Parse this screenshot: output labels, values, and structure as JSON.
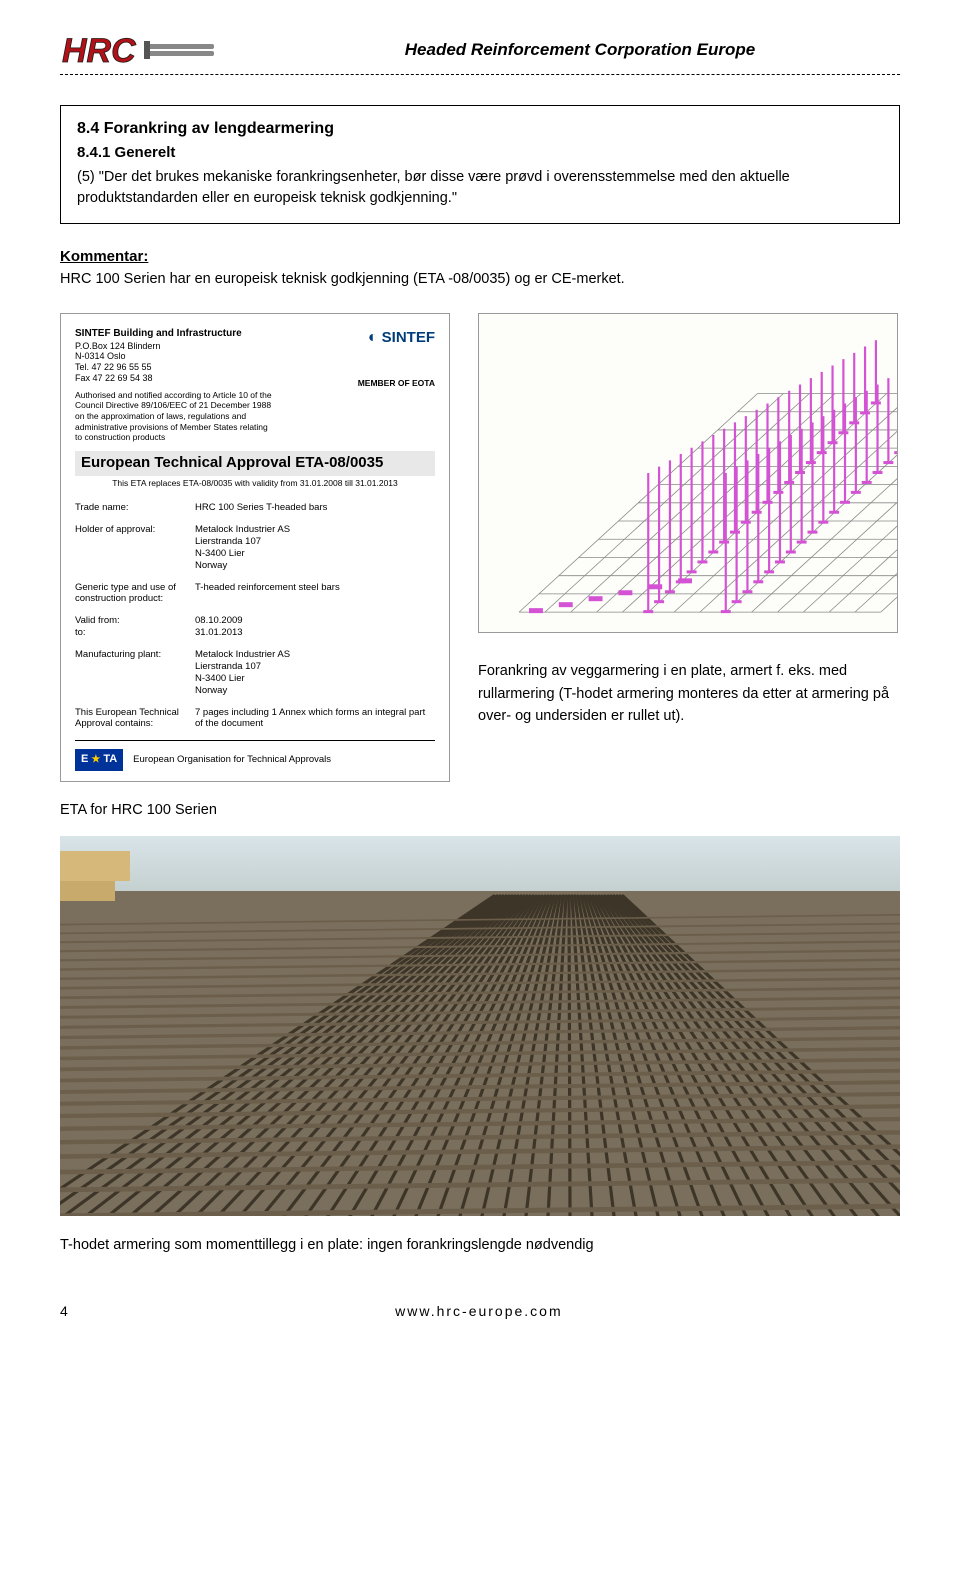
{
  "header": {
    "logo_text": "HRC",
    "title": "Headed Reinforcement Corporation Europe"
  },
  "box": {
    "section_title": "8.4 Forankring av lengdearmering",
    "sub_title": "8.4.1 Generelt",
    "para": "(5) \"Der det brukes mekaniske forankringsenheter, bør disse være prøvd i overensstemmelse med den aktuelle produktstandarden eller en europeisk teknisk godkjenning.\""
  },
  "kommentar": {
    "label": "Kommentar:",
    "text": "HRC 100 Serien har en europeisk teknisk godkjenning (ETA -08/0035) og er CE-merket."
  },
  "eta_doc": {
    "sintef_name": "SINTEF Building and Infrastructure",
    "addr_lines": [
      "P.O.Box 124 Blindern",
      "N-0314 Oslo",
      "Tel. 47 22 96 55 55",
      "Fax 47 22 69 54 38"
    ],
    "note": "Authorised and notified according to Article 10 of the Council Directive 89/106/EEC of 21 December 1988 on the approximation of laws, regulations and administrative provisions of Member States relating to construction products",
    "sintef_logo": "SINTEF",
    "member": "MEMBER OF EOTA",
    "title": "European Technical Approval   ETA-08/0035",
    "sub": "This ETA replaces ETA-08/0035 with validity from 31.01.2008 till 31.01.2013",
    "rows": [
      {
        "lbl": "Trade name:",
        "val": "HRC 100 Series T-headed bars"
      },
      {
        "lbl": "Holder of approval:",
        "val": "Metalock Industrier AS\nLierstranda 107\nN-3400 Lier\nNorway"
      },
      {
        "lbl": "Generic type and use of construction product:",
        "val": "T-headed reinforcement steel bars"
      },
      {
        "lbl": "Valid     from:\n             to:",
        "val": "08.10.2009\n31.01.2013"
      },
      {
        "lbl": "Manufacturing plant:",
        "val": "Metalock Industrier AS\nLierstranda 107\nN-3400 Lier\nNorway"
      },
      {
        "lbl": "This European Technical Approval contains:",
        "val": "7 pages including 1 Annex which forms an integral part of the document"
      }
    ],
    "eota_text": "European Organisation for Technical Approvals"
  },
  "diagram": {
    "grid_color": "#888888",
    "base_rect_color": "#d452d4",
    "bar_color": "#d452d4",
    "background": "#fdfdfa"
  },
  "caption": "Forankring av veggarmering i en plate, armert f. eks. med rullarmering (T-hodet armering monteres da etter at armering på over- og undersiden er rullet ut).",
  "eta_caption": "ETA for HRC 100 Serien",
  "photo_caption": "T-hodet armering som momenttillegg i en plate: ingen forankringslengde nødvendig",
  "footer": {
    "page": "4",
    "url": "www.hrc-europe.com"
  },
  "colors": {
    "logo_red": "#b01217",
    "logo_dark": "#1a1a1a",
    "sintef_blue": "#003d7a",
    "eota_blue": "#003399",
    "eota_gold": "#ffcc00",
    "rebar": "#6b5e4a",
    "rebar_dark": "#3d3528"
  }
}
